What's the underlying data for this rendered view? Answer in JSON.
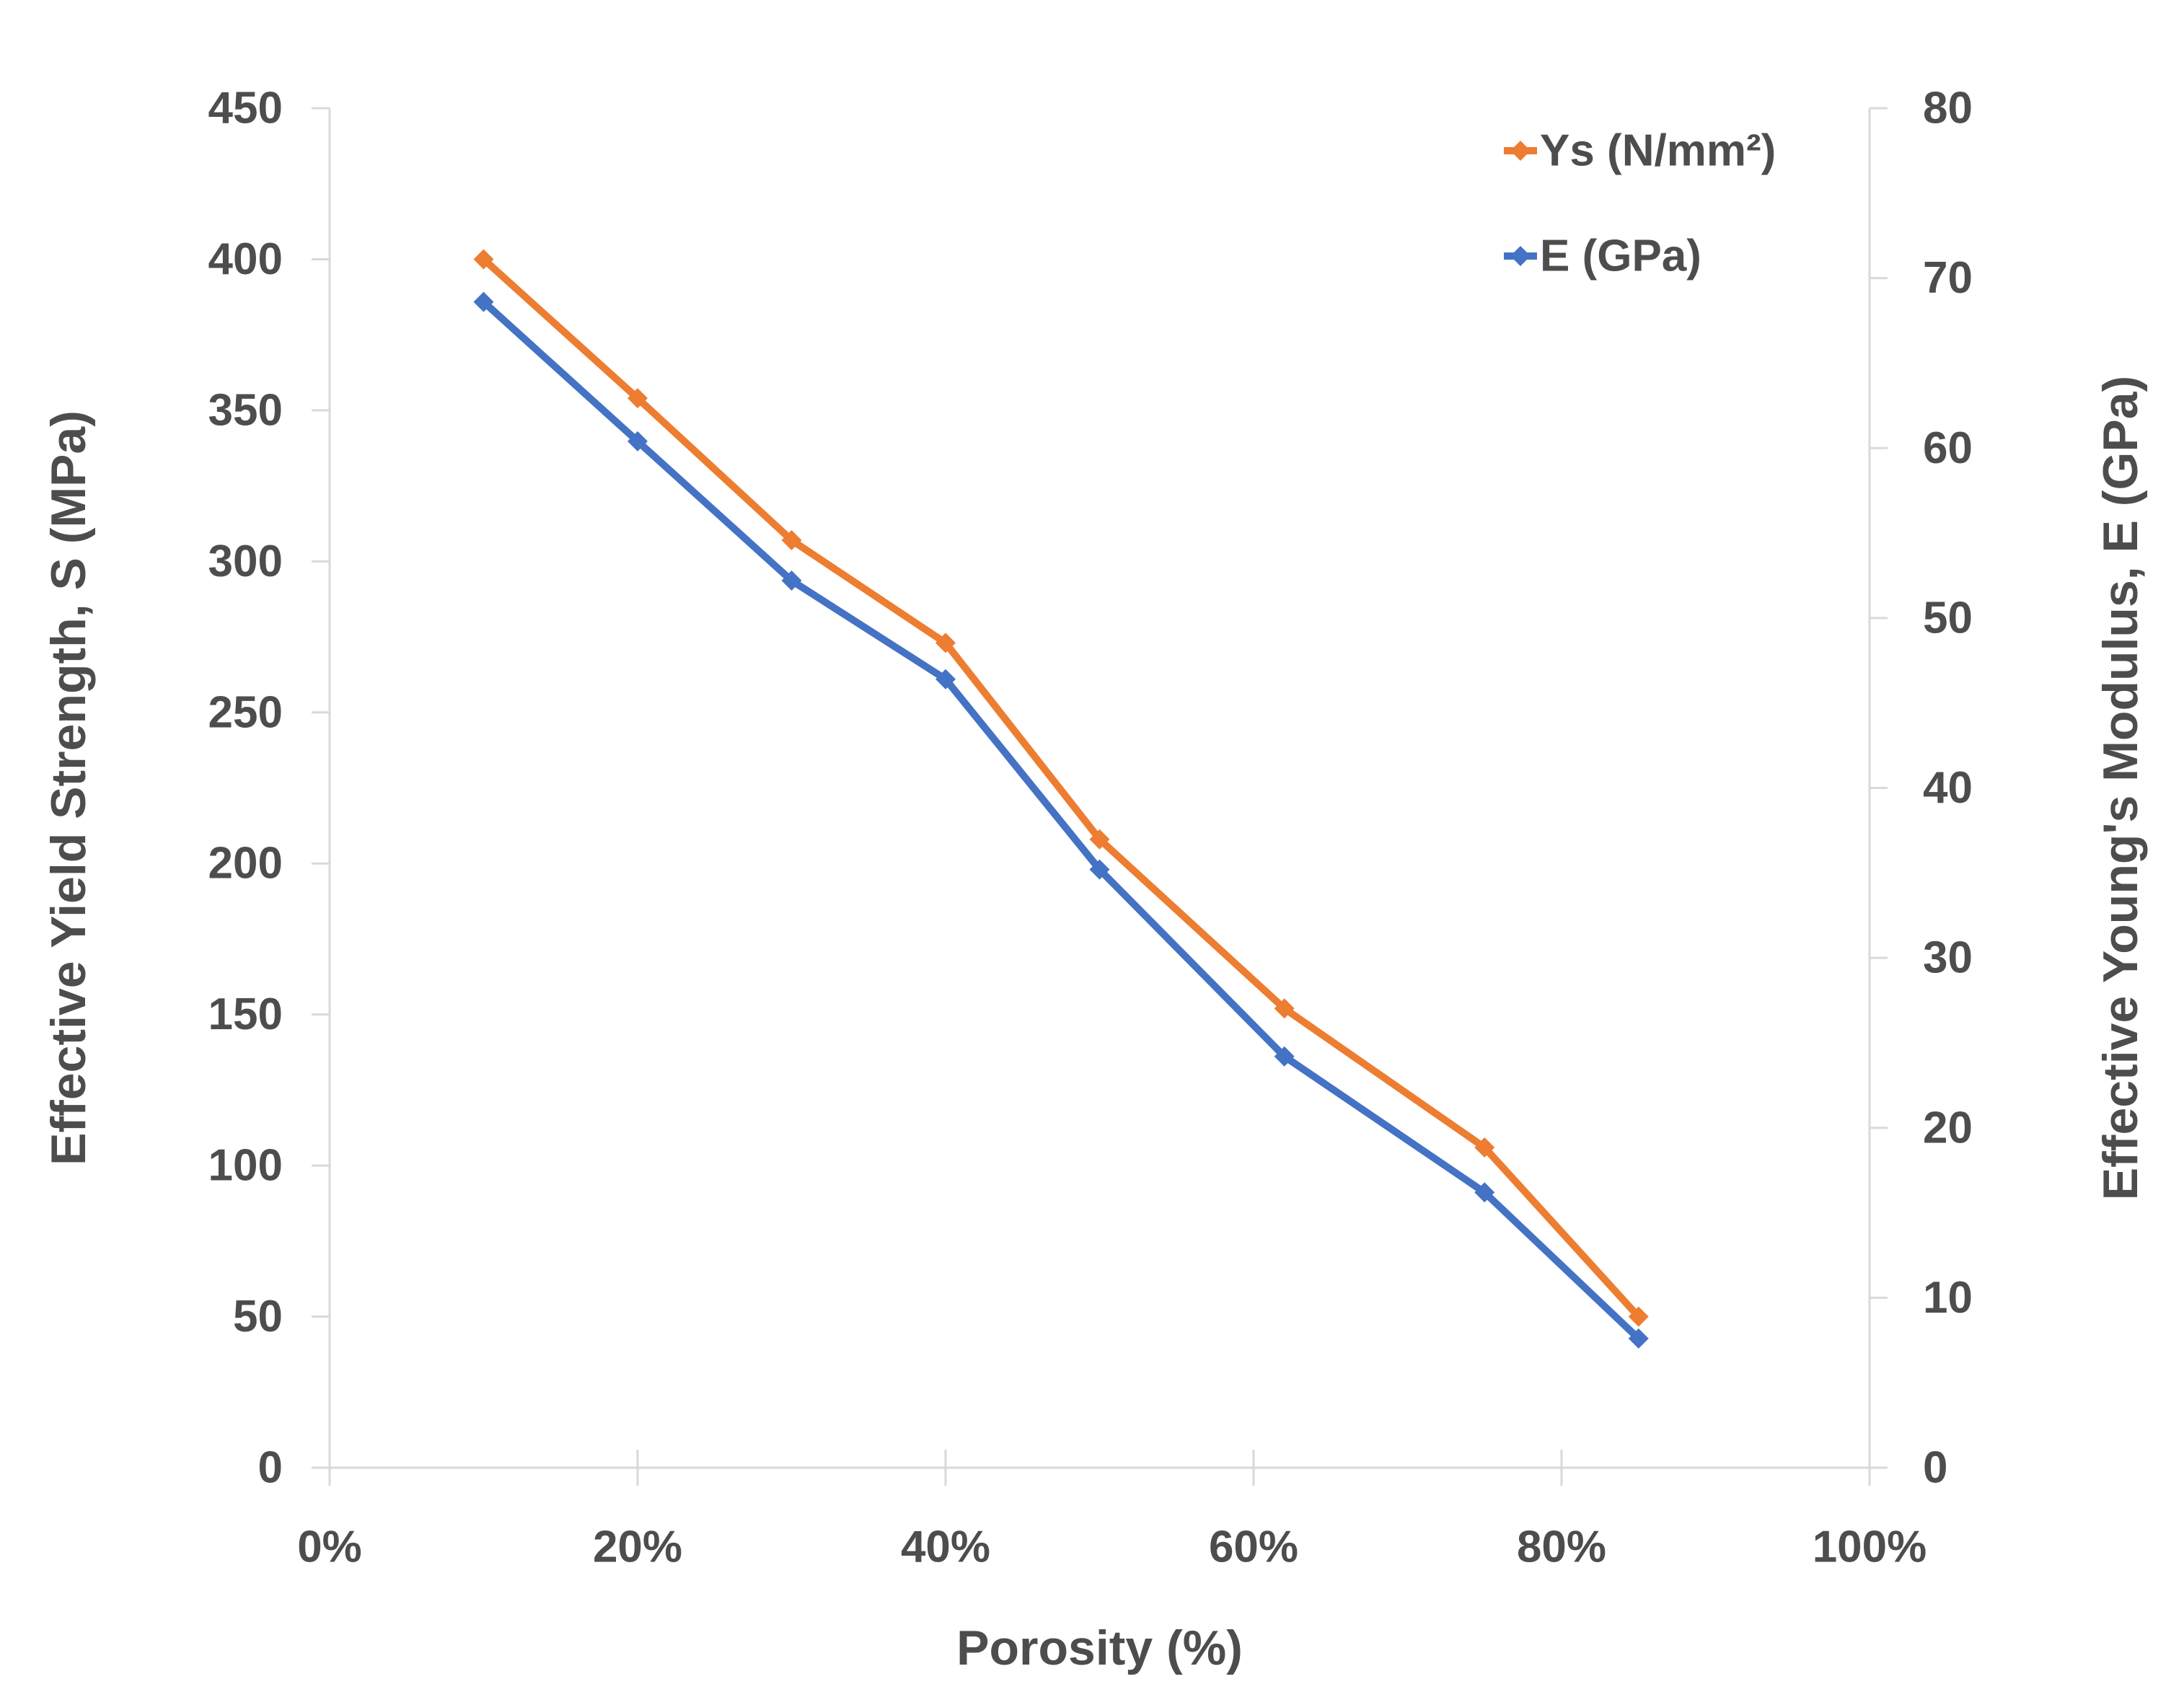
{
  "chart_data": {
    "type": "line",
    "title": "",
    "xlabel": "Porosity (%)",
    "ylabel_left": "Effective Yield Strength, S (MPa)",
    "ylabel_right": "Effective Young's Modulus, E (GPa)",
    "x_percent": [
      10,
      20,
      30,
      40,
      50,
      62,
      75,
      85
    ],
    "series": [
      {
        "name": "Ys (N/mm²)",
        "axis": "left",
        "color": "#ED7D31",
        "marker": "diamond",
        "values": [
          400,
          354,
          307,
          273,
          208,
          152,
          106,
          50
        ]
      },
      {
        "name": "E (GPa)",
        "axis": "right",
        "color": "#4472C4",
        "marker": "diamond",
        "values": [
          68.6,
          60.4,
          52.2,
          46.4,
          35.2,
          24.2,
          16.2,
          7.6
        ]
      }
    ],
    "axes": {
      "left": {
        "min": 0,
        "max": 450,
        "step": 50,
        "tick_labels": [
          "0",
          "50",
          "100",
          "150",
          "200",
          "250",
          "300",
          "350",
          "400",
          "450"
        ]
      },
      "right": {
        "min": 0,
        "max": 80,
        "step": 10,
        "tick_labels": [
          "0",
          "10",
          "20",
          "30",
          "40",
          "50",
          "60",
          "70",
          "80"
        ]
      },
      "x": {
        "min": 0,
        "max": 100,
        "step": 20,
        "tick_labels": [
          "0%",
          "20%",
          "40%",
          "60%",
          "80%",
          "100%"
        ]
      }
    },
    "legend": {
      "position": "top-right"
    },
    "grid": false,
    "colors": {
      "text": "#4d4d4d",
      "axis_line": "#d9d9d9",
      "background": "#ffffff"
    }
  }
}
